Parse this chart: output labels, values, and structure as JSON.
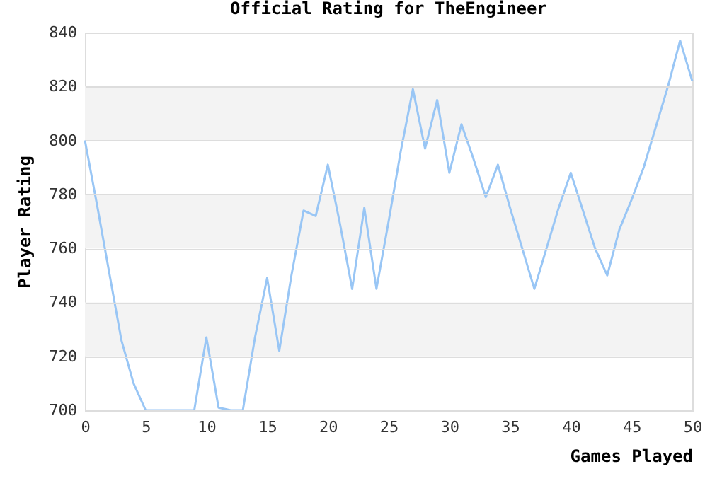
{
  "chart_data": {
    "type": "line",
    "title": "Official Rating for TheEngineer",
    "xlabel": "Games Played",
    "ylabel": "Player Rating",
    "x": [
      0,
      1,
      2,
      3,
      4,
      5,
      6,
      7,
      8,
      9,
      10,
      11,
      12,
      13,
      14,
      15,
      16,
      17,
      18,
      19,
      20,
      21,
      22,
      23,
      24,
      25,
      26,
      27,
      28,
      29,
      30,
      31,
      32,
      33,
      34,
      35,
      36,
      37,
      38,
      39,
      40,
      41,
      42,
      43,
      44,
      45,
      46,
      47,
      48,
      49,
      50
    ],
    "series": [
      {
        "color": "#99c6f5",
        "values": [
          800,
          776,
          751,
          726,
          710,
          700,
          700,
          700,
          700,
          700,
          727,
          701,
          700,
          700,
          727,
          749,
          722,
          750,
          774,
          772,
          791,
          769,
          745,
          775,
          745,
          770,
          796,
          819,
          797,
          815,
          788,
          806,
          793,
          779,
          791,
          775,
          760,
          745,
          760,
          775,
          788,
          774,
          760,
          750,
          767,
          778,
          790,
          805,
          820,
          837,
          822
        ]
      }
    ],
    "xlim": [
      0,
      50
    ],
    "xticks": [
      0,
      5,
      10,
      15,
      20,
      25,
      30,
      35,
      40,
      45,
      50
    ],
    "ylim": [
      700,
      840
    ],
    "yticks": [
      700,
      720,
      740,
      760,
      780,
      800,
      820,
      840
    ],
    "bands": [
      {
        "axis": "y",
        "from": 720,
        "to": 740,
        "color": "#f3f3f3"
      },
      {
        "axis": "y",
        "from": 760,
        "to": 780,
        "color": "#f3f3f3"
      },
      {
        "axis": "y",
        "from": 800,
        "to": 820,
        "color": "#f3f3f3"
      }
    ],
    "grid": "y",
    "marker": "none",
    "line_style": "solid"
  }
}
